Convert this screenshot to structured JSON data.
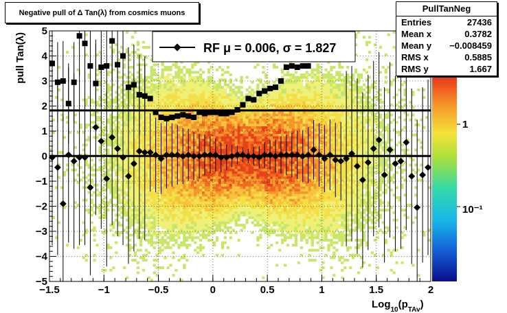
{
  "title": "Negative pull of Δ Tan(λ) from cosmics muons",
  "stats": {
    "name": "PullTanNeg",
    "rows": [
      {
        "label": "Entries",
        "value": "27436"
      },
      {
        "label": "Mean x",
        "value": "0.3782"
      },
      {
        "label": "Mean y",
        "value": "−0.008459"
      },
      {
        "label": "RMS x",
        "value": "0.5885"
      },
      {
        "label": "RMS y",
        "value": "1.667"
      }
    ]
  },
  "legend": {
    "entry": "RF μ =  0.006, σ =   1.827"
  },
  "palette_labels": [
    "1",
    "10⁻¹"
  ],
  "chart_data": {
    "type": "heatmap",
    "xlabel": "Log10(pTAv)",
    "ylabel": "pull Tan(λ)",
    "xlim": [
      -1.5,
      2.0
    ],
    "ylim": [
      -5,
      5
    ],
    "xticks": [
      "−1.5",
      "−1",
      "−0.5",
      "0",
      "0.5",
      "1",
      "1.5",
      "2"
    ],
    "yticks": [
      "−5",
      "−4",
      "−3",
      "−2",
      "−1",
      "0",
      "1",
      "2",
      "3",
      "4",
      "5"
    ],
    "grid": true,
    "lines": [
      {
        "name": "mean",
        "y": 0.006
      },
      {
        "name": "sigma",
        "y": 1.827
      }
    ],
    "mean_points": {
      "x": [
        -1.475,
        -1.425,
        -1.375,
        -1.325,
        -1.275,
        -1.225,
        -1.175,
        -1.125,
        -1.075,
        -1.025,
        -0.975,
        -0.925,
        -0.875,
        -0.825,
        -0.775,
        -0.725,
        -0.675,
        -0.625,
        -0.575,
        -0.525,
        -0.475,
        -0.425,
        -0.375,
        -0.325,
        -0.275,
        -0.225,
        -0.175,
        -0.125,
        -0.075,
        -0.025,
        0.025,
        0.075,
        0.125,
        0.175,
        0.225,
        0.275,
        0.325,
        0.375,
        0.425,
        0.475,
        0.525,
        0.575,
        0.625,
        0.675,
        0.725,
        0.775,
        0.825,
        0.875,
        0.925,
        0.975,
        1.025,
        1.075,
        1.125,
        1.175,
        1.225,
        1.275,
        1.325,
        1.375,
        1.425,
        1.475,
        1.525,
        1.575,
        1.625,
        1.675,
        1.725,
        1.775,
        1.825,
        1.875,
        1.925,
        1.975
      ],
      "y": [
        -0.05,
        -0.45,
        -1.9,
        0.05,
        -0.2,
        -0.05,
        -0.05,
        -1.25,
        1.15,
        0.6,
        -0.9,
        0.75,
        0.3,
        -0.05,
        -0.8,
        -0.3,
        0.2,
        0.15,
        0.15,
        0.05,
        -0.1,
        0.05,
        0.05,
        0.05,
        0.0,
        0.05,
        0.0,
        0.0,
        0.05,
        0.05,
        0.05,
        -0.05,
        -0.05,
        0.0,
        0.05,
        0.05,
        0.0,
        0.0,
        -0.05,
        0.05,
        0.05,
        0.0,
        0.05,
        0.05,
        0.05,
        0.05,
        0.0,
        0.05,
        0.25,
        0.05,
        -0.1,
        0.05,
        -0.15,
        -0.2,
        -0.1,
        0.1,
        -0.4,
        -0.95,
        -0.25,
        0.3,
        0.65,
        -0.75,
        0.25,
        -0.3,
        -0.2,
        0.55,
        -0.8,
        -2.05,
        -0.75,
        -0.45
      ]
    },
    "rms_points": {
      "x": [
        -1.475,
        -1.425,
        -1.375,
        -1.325,
        -1.275,
        -1.225,
        -1.175,
        -1.125,
        -1.075,
        -1.025,
        -0.975,
        -0.925,
        -0.875,
        -0.825,
        -0.775,
        -0.725,
        -0.675,
        -0.625,
        -0.575,
        -0.525,
        -0.475,
        -0.425,
        -0.375,
        -0.325,
        -0.275,
        -0.225,
        -0.175,
        -0.125,
        -0.075,
        -0.025,
        0.025,
        0.075,
        0.125,
        0.175,
        0.225,
        0.275,
        0.325,
        0.375,
        0.425,
        0.475,
        0.525,
        0.575,
        0.625,
        0.675,
        0.725,
        0.775,
        0.825,
        0.875
      ],
      "y": [
        3.7,
        2.95,
        3.0,
        2.1,
        2.95,
        4.8,
        4.5,
        3.6,
        2.9,
        3.55,
        3.6,
        4.6,
        3.65,
        4.0,
        2.75,
        2.85,
        2.45,
        2.4,
        2.3,
        1.75,
        1.55,
        1.5,
        1.55,
        1.6,
        1.65,
        1.6,
        1.55,
        1.75,
        1.7,
        1.75,
        1.75,
        1.7,
        1.7,
        1.75,
        1.85,
        2.05,
        2.3,
        2.25,
        2.5,
        2.6,
        2.7,
        2.75,
        3.0,
        3.55,
        3.6,
        3.55,
        3.6,
        3.6
      ]
    }
  }
}
